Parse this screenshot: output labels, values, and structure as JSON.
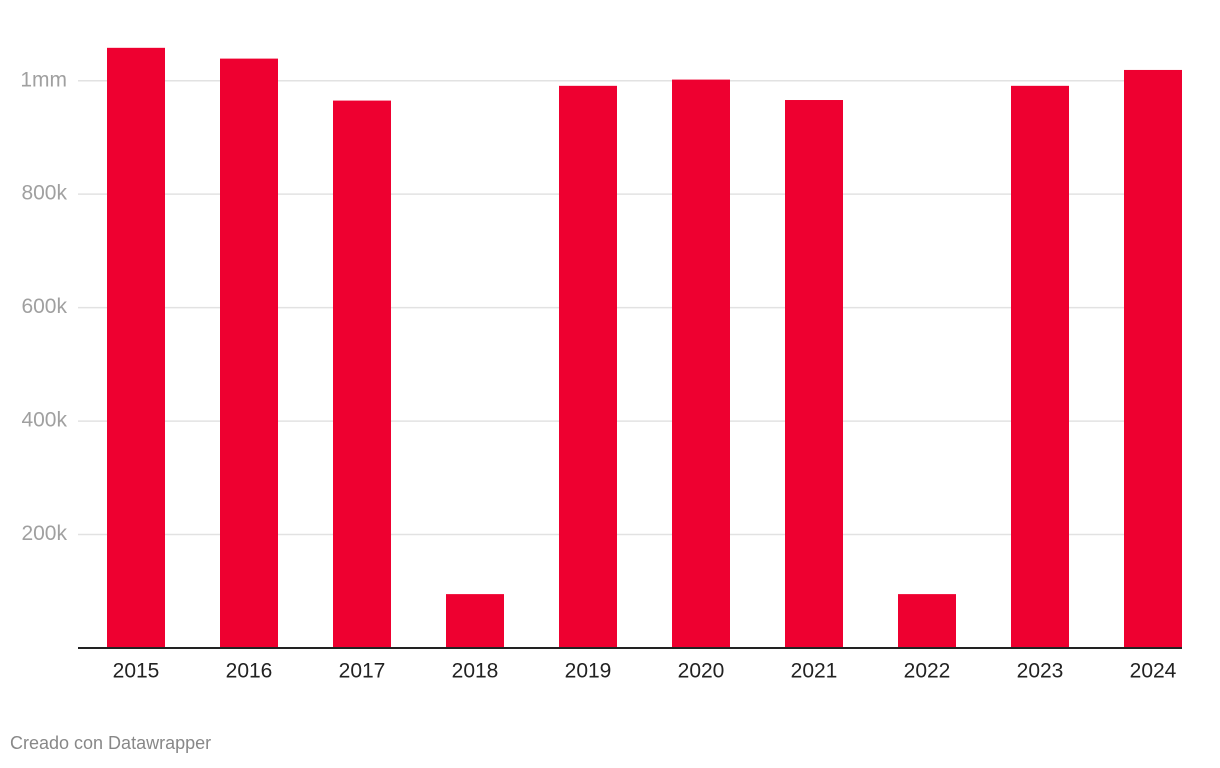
{
  "chart_data": {
    "type": "bar",
    "categories": [
      "2015",
      "2016",
      "2017",
      "2018",
      "2019",
      "2020",
      "2021",
      "2022",
      "2023",
      "2024"
    ],
    "values": [
      1058000,
      1039000,
      965000,
      95000,
      991000,
      1002000,
      966000,
      95000,
      991000,
      1019000
    ],
    "color": "#ee0030",
    "ylim": [
      0,
      1100000
    ],
    "yticks": [
      {
        "value": 200000,
        "label": "200k"
      },
      {
        "value": 400000,
        "label": "400k"
      },
      {
        "value": 600000,
        "label": "600k"
      },
      {
        "value": 800000,
        "label": "800k"
      },
      {
        "value": 1000000,
        "label": "1mm"
      }
    ],
    "grid": true,
    "footer": "Creado con Datawrapper"
  }
}
